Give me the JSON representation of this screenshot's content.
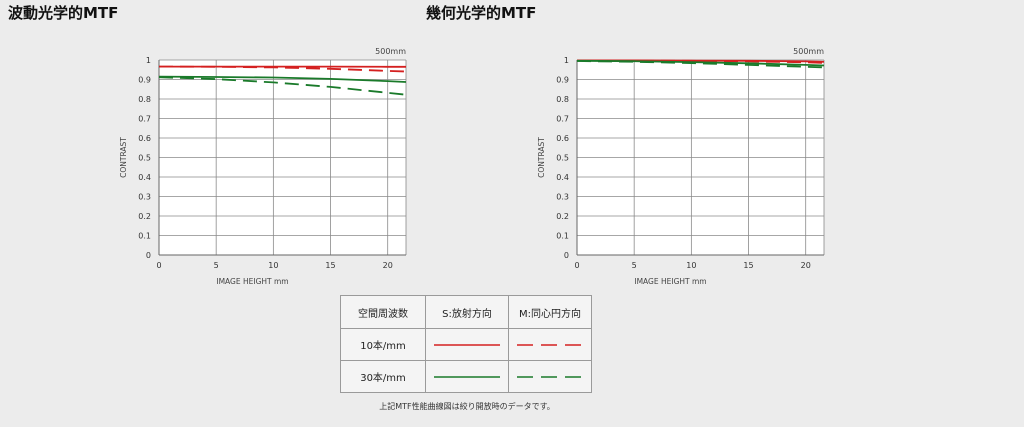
{
  "titles": {
    "left": "波動光学的MTF",
    "right": "幾何光学的MTF"
  },
  "chart_data": [
    {
      "type": "line",
      "title": "波動光学的MTF",
      "focal_label": "500mm",
      "xlabel": "IMAGE HEIGHT   mm",
      "ylabel": "CONTRAST",
      "xlim": [
        0,
        21.6
      ],
      "ylim": [
        0,
        1
      ],
      "xticks": [
        0,
        5,
        10,
        15,
        20
      ],
      "yticks": [
        0,
        0.1,
        0.2,
        0.3,
        0.4,
        0.5,
        0.6,
        0.7,
        0.8,
        0.9,
        1
      ],
      "ytick_labels": [
        "0",
        "0.1",
        "0.2",
        "0.3",
        "0.4",
        "0.5",
        "0.6",
        "0.7",
        "0.8",
        "0.9",
        "1"
      ],
      "grid": true,
      "series": [
        {
          "name": "10本/mm S",
          "color": "#d42020",
          "dashed": false,
          "x": [
            0,
            5,
            10,
            15,
            20,
            21.6
          ],
          "y": [
            0.966,
            0.966,
            0.966,
            0.966,
            0.965,
            0.965
          ]
        },
        {
          "name": "10本/mm M",
          "color": "#d42020",
          "dashed": true,
          "x": [
            0,
            5,
            10,
            15,
            20,
            21.6
          ],
          "y": [
            0.966,
            0.965,
            0.962,
            0.955,
            0.944,
            0.941
          ]
        },
        {
          "name": "30本/mm S",
          "color": "#1a7a2a",
          "dashed": false,
          "x": [
            0,
            5,
            10,
            15,
            20,
            21.6
          ],
          "y": [
            0.915,
            0.913,
            0.91,
            0.903,
            0.892,
            0.887
          ]
        },
        {
          "name": "30本/mm M",
          "color": "#1a7a2a",
          "dashed": true,
          "x": [
            0,
            5,
            10,
            15,
            20,
            21.6
          ],
          "y": [
            0.912,
            0.902,
            0.885,
            0.862,
            0.832,
            0.822
          ]
        }
      ]
    },
    {
      "type": "line",
      "title": "幾何光学的MTF",
      "focal_label": "500mm",
      "xlabel": "IMAGE HEIGHT   mm",
      "ylabel": "CONTRAST",
      "xlim": [
        0,
        21.6
      ],
      "ylim": [
        0,
        1
      ],
      "xticks": [
        0,
        5,
        10,
        15,
        20
      ],
      "yticks": [
        0,
        0.1,
        0.2,
        0.3,
        0.4,
        0.5,
        0.6,
        0.7,
        0.8,
        0.9,
        1
      ],
      "ytick_labels": [
        "0",
        "0.1",
        "0.2",
        "0.3",
        "0.4",
        "0.5",
        "0.6",
        "0.7",
        "0.8",
        "0.9",
        "1"
      ],
      "grid": true,
      "series": [
        {
          "name": "10本/mm S",
          "color": "#d42020",
          "dashed": false,
          "x": [
            0,
            5,
            10,
            15,
            20,
            21.6
          ],
          "y": [
            0.998,
            0.998,
            0.997,
            0.996,
            0.993,
            0.991
          ]
        },
        {
          "name": "10本/mm M",
          "color": "#d42020",
          "dashed": true,
          "x": [
            0,
            5,
            10,
            15,
            20,
            21.6
          ],
          "y": [
            0.998,
            0.997,
            0.996,
            0.993,
            0.988,
            0.985
          ]
        },
        {
          "name": "30本/mm S",
          "color": "#1a7a2a",
          "dashed": false,
          "x": [
            0,
            5,
            10,
            15,
            20,
            21.6
          ],
          "y": [
            0.996,
            0.994,
            0.989,
            0.983,
            0.975,
            0.972
          ]
        },
        {
          "name": "30本/mm M",
          "color": "#1a7a2a",
          "dashed": true,
          "x": [
            0,
            5,
            10,
            15,
            20,
            21.6
          ],
          "y": [
            0.995,
            0.991,
            0.984,
            0.975,
            0.965,
            0.962
          ]
        }
      ]
    }
  ],
  "legend": {
    "headers": [
      "空間周波数",
      "S:放射方向",
      "M:同心円方向"
    ],
    "rows": [
      {
        "label": "10本/mm",
        "color": "#d42020"
      },
      {
        "label": "30本/mm",
        "color": "#1a7a2a"
      }
    ]
  },
  "footnote": "上記MTF性能曲線図は絞り開放時のデータです。"
}
